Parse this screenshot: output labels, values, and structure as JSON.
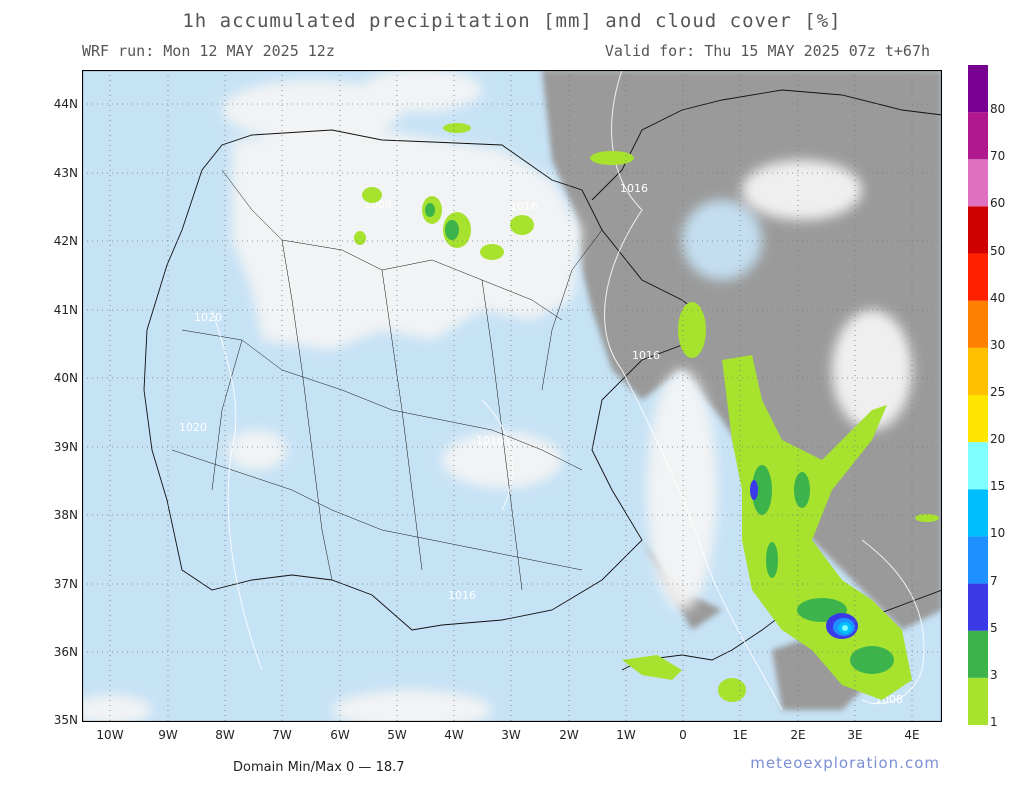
{
  "header": {
    "title": "1h accumulated precipitation [mm] and cloud cover [%]",
    "run": "WRF run: Mon 12 MAY 2025 12z",
    "valid": "Valid for: Thu 15 MAY 2025 07z  t+67h"
  },
  "axes": {
    "lat_labels": [
      "44N",
      "43N",
      "42N",
      "41N",
      "40N",
      "39N",
      "38N",
      "37N",
      "36N",
      "35N"
    ],
    "lon_labels": [
      "10W",
      "9W",
      "8W",
      "7W",
      "6W",
      "5W",
      "4W",
      "3W",
      "2W",
      "1W",
      "0",
      "1E",
      "2E",
      "3E",
      "4E"
    ]
  },
  "isobars": [
    "1016",
    "1016",
    "1020",
    "1016",
    "1016",
    "1008",
    "1020",
    "1016",
    "1008"
  ],
  "legend": {
    "values": [
      "1",
      "3",
      "5",
      "7",
      "10",
      "15",
      "20",
      "25",
      "30",
      "40",
      "50",
      "60",
      "70",
      "80"
    ],
    "colors": [
      "#a6e22e",
      "#3cb44b",
      "#3a3ae8",
      "#1e90ff",
      "#00bfff",
      "#7fffff",
      "#ffe600",
      "#ffc000",
      "#ff8000",
      "#ff2000",
      "#d00000",
      "#e070c0",
      "#b01890",
      "#780090"
    ]
  },
  "footer": {
    "minmax": "Domain Min/Max 0 — 18.7",
    "brand": "meteoexploration.com"
  },
  "colors": {
    "sea": "#c6e2f5",
    "land": "#c6e2f5",
    "cloud_dense": "#9a9a9a",
    "cloud_light": "#f2f2f2"
  }
}
